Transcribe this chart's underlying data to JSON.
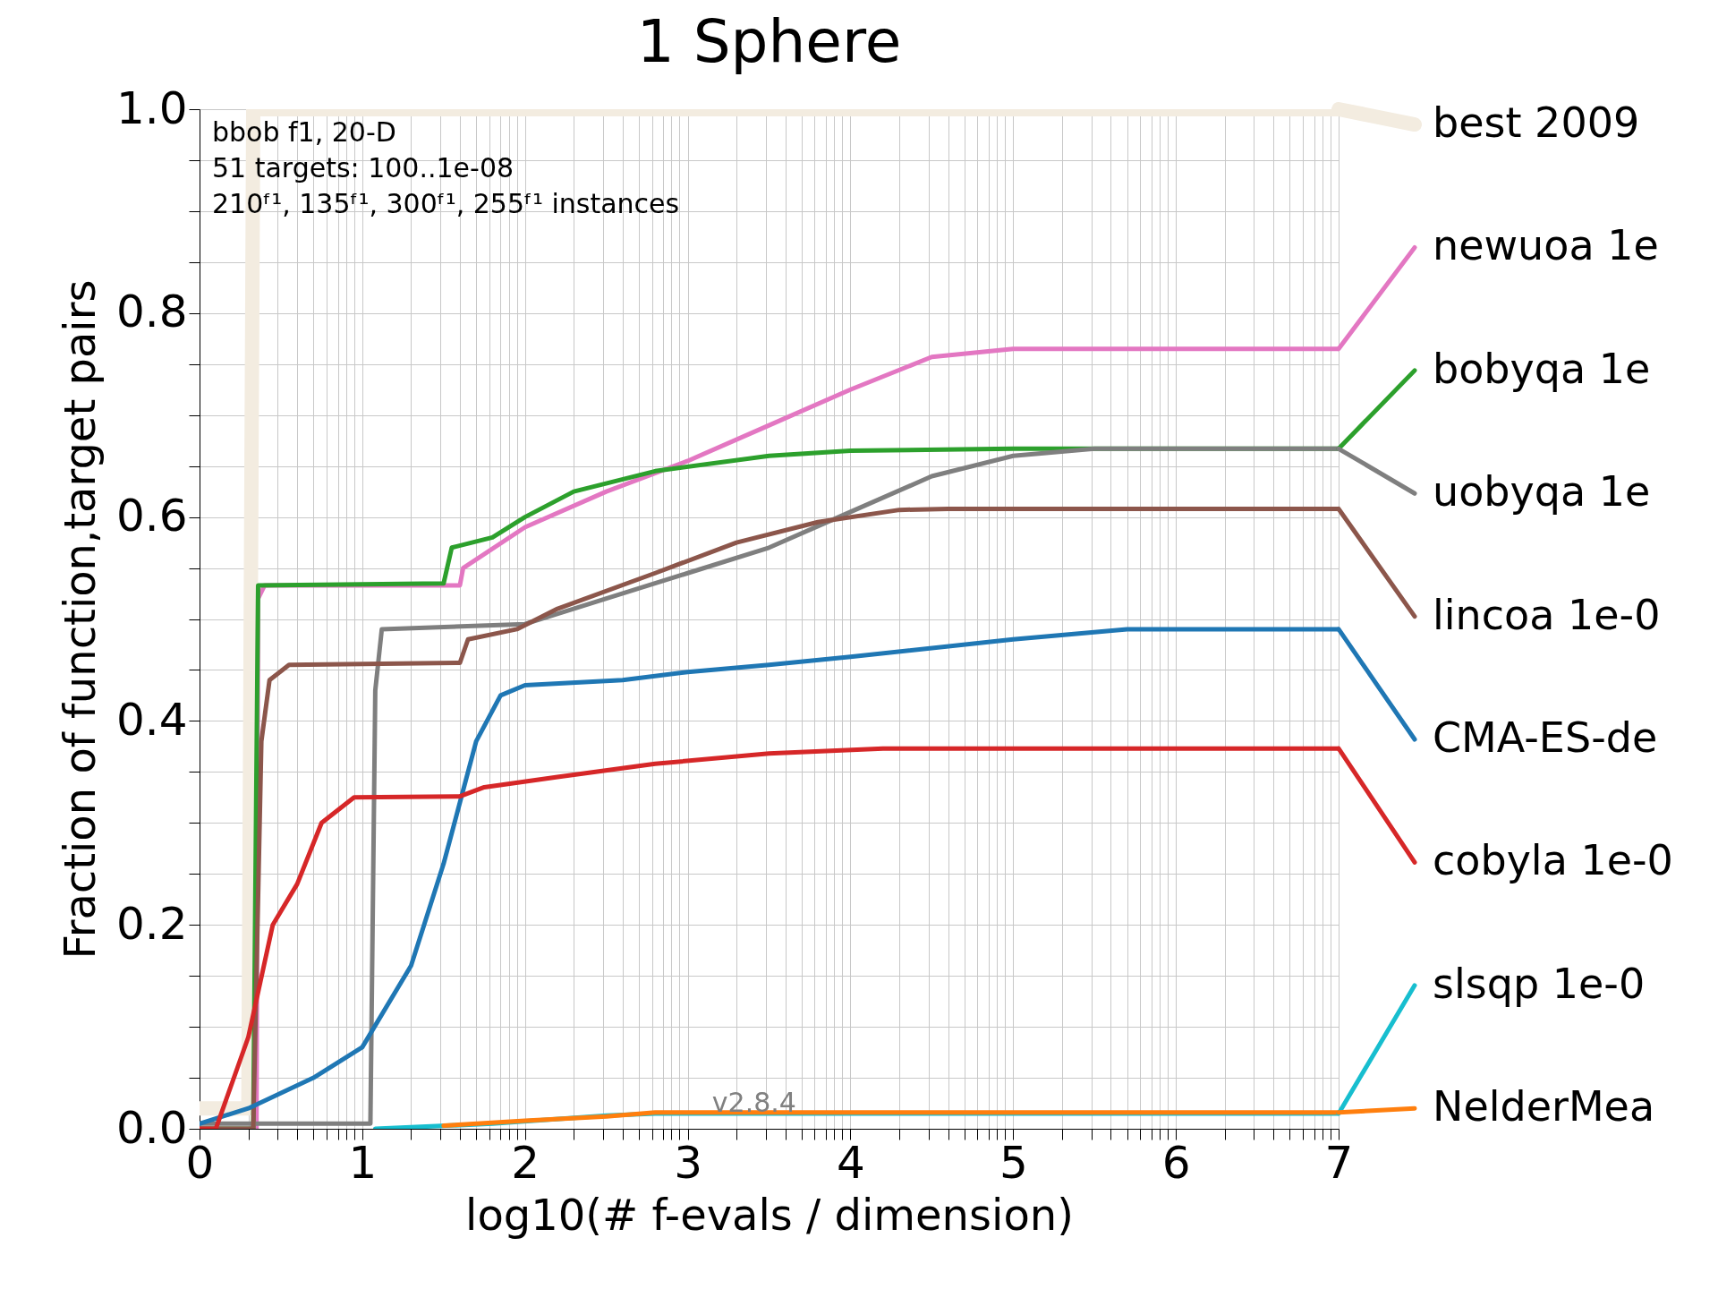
{
  "chart_data": {
    "type": "line",
    "title": "1 Sphere",
    "xlabel": "log10(# f-evals / dimension)",
    "ylabel": "Fraction of function,target pairs",
    "annotations": [
      "bbob f1, 20-D",
      "51 targets: 100..1e-08",
      "210ᶠ¹, 135ᶠ¹, 300ᶠ¹, 255ᶠ¹ instances",
      "v2.8.4"
    ],
    "xlim": [
      0,
      7
    ],
    "ylim": [
      0,
      1
    ],
    "xticks": [
      0,
      {
        "value": 0.3,
        "label": null
      },
      {
        "value": 0.48,
        "label": null
      },
      {
        "value": 0.6,
        "label": null
      },
      {
        "value": 0.7,
        "label": null
      },
      {
        "value": 0.78,
        "label": null
      },
      {
        "value": 0.85,
        "label": null
      },
      {
        "value": 0.9,
        "label": null
      },
      {
        "value": 0.95,
        "label": null
      },
      1,
      {
        "value": 1.3,
        "label": null
      },
      {
        "value": 1.48,
        "label": null
      },
      {
        "value": 1.6,
        "label": null
      },
      {
        "value": 1.7,
        "label": null
      },
      {
        "value": 1.78,
        "label": null
      },
      {
        "value": 1.85,
        "label": null
      },
      {
        "value": 1.9,
        "label": null
      },
      {
        "value": 1.95,
        "label": null
      },
      2,
      {
        "value": 2.3,
        "label": null
      },
      {
        "value": 2.48,
        "label": null
      },
      {
        "value": 2.6,
        "label": null
      },
      {
        "value": 2.7,
        "label": null
      },
      {
        "value": 2.78,
        "label": null
      },
      {
        "value": 2.85,
        "label": null
      },
      {
        "value": 2.9,
        "label": null
      },
      {
        "value": 2.95,
        "label": null
      },
      3,
      {
        "value": 3.3,
        "label": null
      },
      {
        "value": 3.48,
        "label": null
      },
      {
        "value": 3.6,
        "label": null
      },
      {
        "value": 3.7,
        "label": null
      },
      {
        "value": 3.78,
        "label": null
      },
      {
        "value": 3.85,
        "label": null
      },
      {
        "value": 3.9,
        "label": null
      },
      {
        "value": 3.95,
        "label": null
      },
      4,
      {
        "value": 4.3,
        "label": null
      },
      {
        "value": 4.48,
        "label": null
      },
      {
        "value": 4.6,
        "label": null
      },
      {
        "value": 4.7,
        "label": null
      },
      {
        "value": 4.78,
        "label": null
      },
      {
        "value": 4.85,
        "label": null
      },
      {
        "value": 4.9,
        "label": null
      },
      {
        "value": 4.95,
        "label": null
      },
      5,
      {
        "value": 5.3,
        "label": null
      },
      {
        "value": 5.48,
        "label": null
      },
      {
        "value": 5.6,
        "label": null
      },
      {
        "value": 5.7,
        "label": null
      },
      {
        "value": 5.78,
        "label": null
      },
      {
        "value": 5.85,
        "label": null
      },
      {
        "value": 5.9,
        "label": null
      },
      {
        "value": 5.95,
        "label": null
      },
      6,
      {
        "value": 6.3,
        "label": null
      },
      {
        "value": 6.48,
        "label": null
      },
      {
        "value": 6.6,
        "label": null
      },
      {
        "value": 6.7,
        "label": null
      },
      {
        "value": 6.78,
        "label": null
      },
      {
        "value": 6.85,
        "label": null
      },
      {
        "value": 6.9,
        "label": null
      },
      {
        "value": 6.95,
        "label": null
      },
      7
    ],
    "yticks": [
      {
        "value": 0,
        "label": "0.0"
      },
      {
        "value": 0.05,
        "label": null
      },
      {
        "value": 0.1,
        "label": null
      },
      {
        "value": 0.15,
        "label": null
      },
      0.2,
      {
        "value": 0.25,
        "label": null
      },
      {
        "value": 0.3,
        "label": null
      },
      {
        "value": 0.35,
        "label": null
      },
      0.4,
      {
        "value": 0.45,
        "label": null
      },
      {
        "value": 0.5,
        "label": null
      },
      {
        "value": 0.55,
        "label": null
      },
      0.6,
      {
        "value": 0.65,
        "label": null
      },
      {
        "value": 0.7,
        "label": null
      },
      {
        "value": 0.75,
        "label": null
      },
      0.8,
      {
        "value": 0.85,
        "label": null
      },
      {
        "value": 0.9,
        "label": null
      },
      {
        "value": 0.95,
        "label": null
      },
      {
        "value": 1,
        "label": "1.0"
      }
    ],
    "grid": true,
    "line_style": "solid",
    "legend": "right",
    "series": [
      {
        "name": "best 2009",
        "color": "#f3ece0",
        "x": [
          0,
          0.3,
          0.33,
          7
        ],
        "values": [
          0.02,
          0.02,
          1.0,
          1.0
        ]
      },
      {
        "name": "newuoa 1e",
        "color": "#e377c2",
        "x": [
          0,
          0.35,
          0.36,
          0.4,
          1.6,
          1.62,
          2.0,
          2.5,
          3.0,
          3.5,
          4.0,
          4.5,
          5.0,
          7
        ],
        "values": [
          0,
          0,
          0.52,
          0.533,
          0.533,
          0.55,
          0.59,
          0.625,
          0.655,
          0.69,
          0.725,
          0.757,
          0.765,
          0.765
        ]
      },
      {
        "name": "bobyqa 1e",
        "color": "#2ca02c",
        "x": [
          0,
          0.33,
          0.36,
          1.5,
          1.55,
          1.8,
          2.0,
          2.3,
          2.8,
          3.5,
          4.0,
          5.0,
          7
        ],
        "values": [
          0,
          0,
          0.533,
          0.535,
          0.57,
          0.58,
          0.6,
          0.625,
          0.645,
          0.66,
          0.665,
          0.667,
          0.667
        ]
      },
      {
        "name": "uobyqa 1e",
        "color": "#7f7f7f",
        "x": [
          0,
          1.05,
          1.08,
          1.12,
          2.0,
          2.5,
          3.0,
          3.5,
          4.0,
          4.5,
          5.0,
          5.5,
          7
        ],
        "values": [
          0.005,
          0.005,
          0.43,
          0.49,
          0.495,
          0.52,
          0.545,
          0.57,
          0.605,
          0.64,
          0.66,
          0.667,
          0.667
        ]
      },
      {
        "name": "lincoa 1e-0",
        "color": "#8c564b",
        "x": [
          0,
          0.33,
          0.38,
          0.43,
          0.55,
          1.6,
          1.65,
          1.95,
          2.2,
          2.8,
          3.3,
          3.8,
          4.3,
          4.6,
          7
        ],
        "values": [
          0,
          0,
          0.38,
          0.44,
          0.455,
          0.457,
          0.48,
          0.49,
          0.51,
          0.545,
          0.575,
          0.595,
          0.607,
          0.608,
          0.608
        ]
      },
      {
        "name": "CMA-ES-de",
        "color": "#1f77b4",
        "x": [
          0,
          0.3,
          0.7,
          1.0,
          1.3,
          1.5,
          1.7,
          1.85,
          2.0,
          2.6,
          3.0,
          3.5,
          4.0,
          5.0,
          5.7,
          7
        ],
        "values": [
          0.005,
          0.02,
          0.05,
          0.08,
          0.16,
          0.26,
          0.38,
          0.425,
          0.435,
          0.44,
          0.448,
          0.455,
          0.463,
          0.48,
          0.49,
          0.49
        ]
      },
      {
        "name": "cobyla 1e-0",
        "color": "#d62728",
        "x": [
          0,
          0.1,
          0.3,
          0.45,
          0.6,
          0.75,
          0.95,
          1.6,
          1.75,
          2.2,
          2.8,
          3.5,
          4.2,
          7
        ],
        "values": [
          0,
          0,
          0.09,
          0.2,
          0.24,
          0.3,
          0.325,
          0.326,
          0.335,
          0.345,
          0.358,
          0.368,
          0.373,
          0.373
        ]
      },
      {
        "name": "slsqp 1e-0",
        "color": "#17becf",
        "x": [
          1.08,
          1.8,
          2.5,
          2.8,
          7
        ],
        "values": [
          0,
          0.005,
          0.013,
          0.015,
          0.015
        ]
      },
      {
        "name": "NelderMea",
        "color": "#ff7f0e",
        "x": [
          1.5,
          2.0,
          2.5,
          2.8,
          7
        ],
        "values": [
          0.003,
          0.008,
          0.012,
          0.016,
          0.016
        ]
      }
    ]
  }
}
